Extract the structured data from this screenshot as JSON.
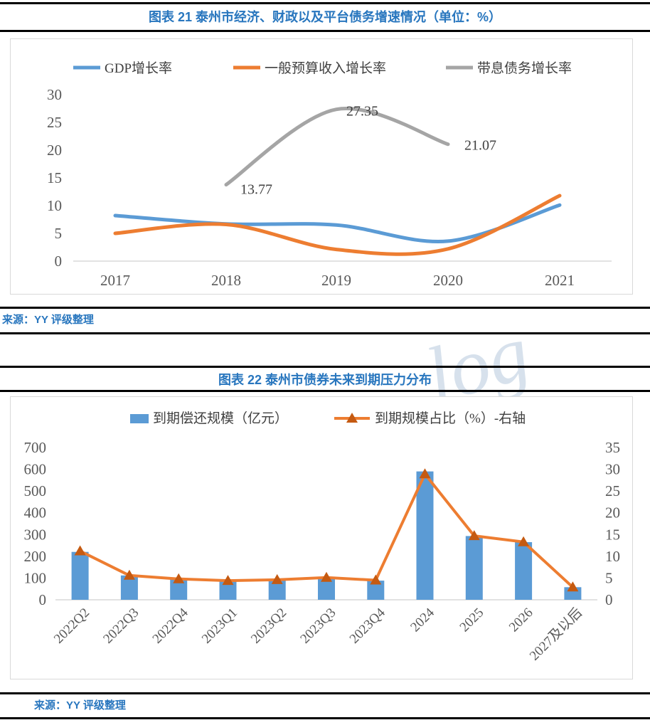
{
  "figure21": {
    "title": "图表 21 泰州市经济、财政以及平台债务增速情况（单位：%）",
    "source": "来源：YY 评级整理"
  },
  "figure22": {
    "title": "图表 22 泰州市债券未来到期压力分布",
    "source": "来源：YY 评级整理"
  },
  "watermark": {
    "text": "log"
  },
  "colors": {
    "title_blue": "#2876BE",
    "axis_text": "#595959",
    "axis_line": "#D9D9D9",
    "series_blue": "#5B9BD5",
    "series_orange": "#ED7D31",
    "series_gray": "#A5A5A5",
    "marker_dark_orange": "#C55A11",
    "rule_black": "#000000",
    "watermark_blue": "#C2D2E2"
  },
  "chart_data": [
    {
      "type": "line",
      "title": "图表 21 泰州市经济、财政以及平台债务增速情况（单位：%）",
      "categories": [
        "2017",
        "2018",
        "2019",
        "2020",
        "2021"
      ],
      "series": [
        {
          "name": "GDP增长率",
          "color": "#5B9BD5",
          "values": [
            8.2,
            6.7,
            6.5,
            3.6,
            10.1
          ]
        },
        {
          "name": "一般预算收入增长率",
          "color": "#ED7D31",
          "values": [
            5.0,
            6.6,
            2.1,
            2.2,
            11.8
          ]
        },
        {
          "name": "带息债务增长率",
          "color": "#A5A5A5",
          "values": [
            null,
            13.77,
            27.35,
            21.07,
            null
          ],
          "point_labels": [
            null,
            "13.77",
            "27.35",
            "21.07",
            null
          ]
        }
      ],
      "ylim": [
        0,
        30
      ],
      "ytick_step": 5,
      "grid": false,
      "legend_position": "top",
      "smooth": true
    },
    {
      "type": "bar",
      "title": "图表 22 泰州市债券未来到期压力分布",
      "categories": [
        "2022Q2",
        "2022Q3",
        "2022Q4",
        "2023Q1",
        "2023Q2",
        "2023Q3",
        "2023Q4",
        "2024",
        "2025",
        "2026",
        "2027及以后"
      ],
      "series": [
        {
          "name": "到期偿还规模（亿元）",
          "chart_type": "bar",
          "axis": "left",
          "color": "#5B9BD5",
          "values": [
            220,
            112,
            95,
            85,
            90,
            100,
            88,
            590,
            293,
            265,
            58
          ]
        },
        {
          "name": "到期规模占比（%）-右轴",
          "chart_type": "line",
          "axis": "right",
          "color": "#ED7D31",
          "marker": "triangle",
          "marker_color": "#C55A11",
          "values": [
            11.2,
            5.6,
            4.8,
            4.4,
            4.6,
            5.1,
            4.5,
            28.9,
            14.7,
            13.3,
            2.9
          ]
        }
      ],
      "ylim_left": [
        0,
        700
      ],
      "ytick_step_left": 100,
      "ylim_right": [
        0,
        35
      ],
      "ytick_step_right": 5,
      "grid": false,
      "legend_position": "top"
    }
  ]
}
